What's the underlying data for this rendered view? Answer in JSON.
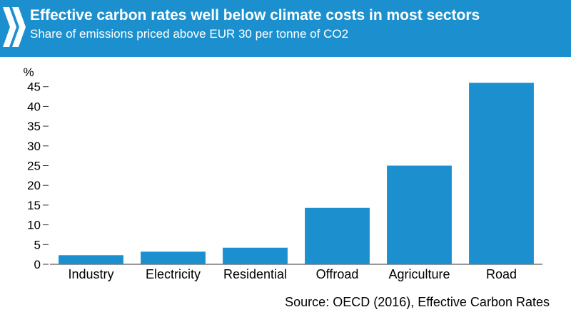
{
  "header": {
    "title": "Effective carbon rates well below climate costs in most sectors",
    "subtitle": "Share of emissions priced above EUR 30 per tonne of CO2",
    "background_color": "#1c90cf",
    "icon": "double-chevron-right-icon"
  },
  "chart_data": {
    "type": "bar",
    "categories": [
      "Industry",
      "Electricity",
      "Residential",
      "Offroad",
      "Agriculture",
      "Road"
    ],
    "values": [
      2.3,
      3.2,
      4.2,
      14.3,
      25,
      46
    ],
    "ylabel": "%",
    "yticks": [
      0,
      5,
      10,
      15,
      20,
      25,
      30,
      35,
      40,
      45
    ],
    "ylim": [
      0,
      50
    ],
    "grid": false,
    "bar_color": "#1c90cf"
  },
  "source": "Source: OECD (2016), Effective Carbon Rates"
}
